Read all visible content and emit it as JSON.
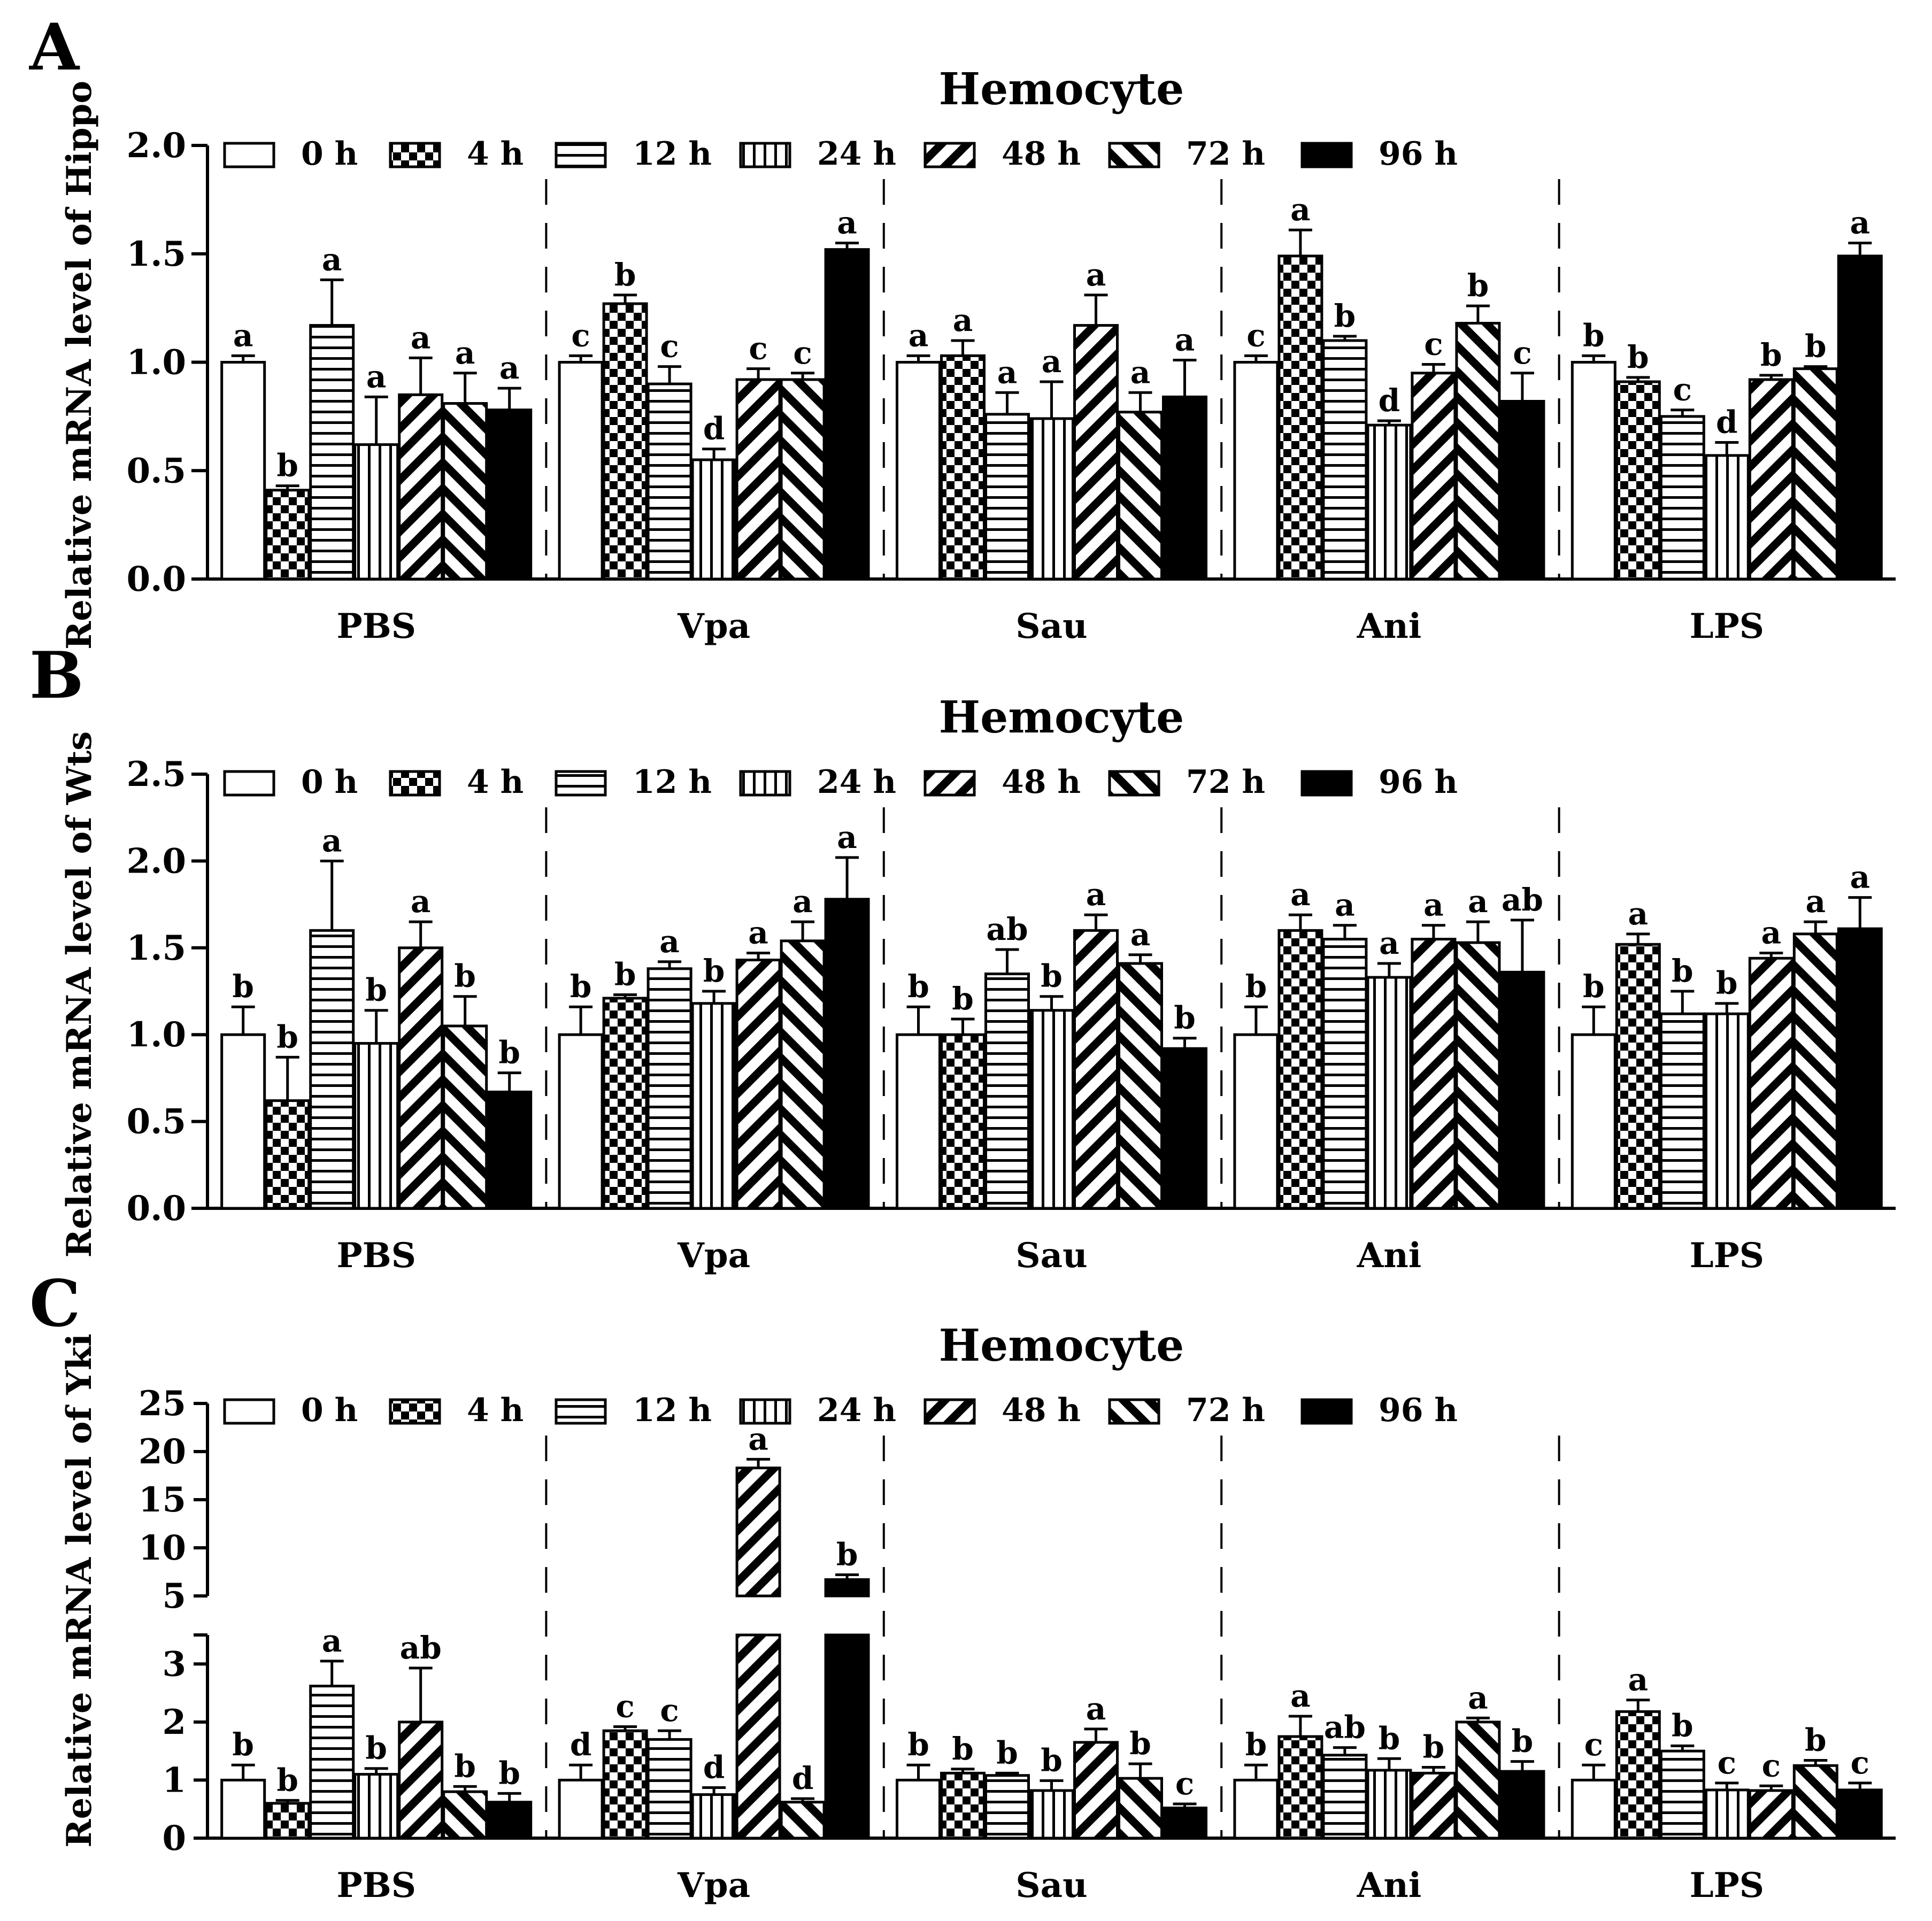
{
  "legend": [
    "0 h",
    "4 h",
    "12 h",
    "24 h",
    "48 h",
    "72 h",
    "96 h"
  ],
  "groups": [
    "PBS",
    "Vpa",
    "Sau",
    "Ani",
    "LPS"
  ],
  "chart_data": [
    {
      "panel": "A",
      "type": "bar",
      "title": "Hemocyte",
      "ylabel": "Relative mRNA level of Hippo",
      "ylim": [
        0,
        2.0
      ],
      "yticks": [
        "0.0",
        "0.5",
        "1.0",
        "1.5",
        "2.0"
      ],
      "series_names": [
        "0 h",
        "4 h",
        "12 h",
        "24 h",
        "48 h",
        "72 h",
        "96 h"
      ],
      "groups": [
        {
          "name": "PBS",
          "values": [
            1.0,
            0.41,
            1.17,
            0.62,
            0.85,
            0.81,
            0.78
          ],
          "errors": [
            0.03,
            0.02,
            0.21,
            0.22,
            0.17,
            0.14,
            0.1
          ],
          "letters": [
            "a",
            "b",
            "a",
            "a",
            "a",
            "a",
            "a"
          ]
        },
        {
          "name": "Vpa",
          "values": [
            1.0,
            1.27,
            0.9,
            0.55,
            0.92,
            0.92,
            1.52
          ],
          "errors": [
            0.03,
            0.04,
            0.08,
            0.05,
            0.05,
            0.03,
            0.03
          ],
          "letters": [
            "c",
            "b",
            "c",
            "d",
            "c",
            "c",
            "a"
          ]
        },
        {
          "name": "Sau",
          "values": [
            1.0,
            1.03,
            0.76,
            0.74,
            1.17,
            0.77,
            0.84
          ],
          "errors": [
            0.03,
            0.07,
            0.1,
            0.17,
            0.14,
            0.09,
            0.17
          ],
          "letters": [
            "a",
            "a",
            "a",
            "a",
            "a",
            "a",
            "a"
          ]
        },
        {
          "name": "Ani",
          "values": [
            1.0,
            1.49,
            1.1,
            0.71,
            0.95,
            1.18,
            0.82
          ],
          "errors": [
            0.03,
            0.12,
            0.02,
            0.02,
            0.04,
            0.08,
            0.13
          ],
          "letters": [
            "c",
            "a",
            "b",
            "d",
            "c",
            "b",
            "c"
          ]
        },
        {
          "name": "LPS",
          "values": [
            1.0,
            0.91,
            0.75,
            0.57,
            0.92,
            0.97,
            1.49
          ],
          "errors": [
            0.03,
            0.02,
            0.03,
            0.06,
            0.02,
            0.01,
            0.06
          ],
          "letters": [
            "b",
            "b",
            "c",
            "d",
            "b",
            "b",
            "a"
          ]
        }
      ]
    },
    {
      "panel": "B",
      "type": "bar",
      "title": "Hemocyte",
      "ylabel": "Relative mRNA level of Wts",
      "ylim": [
        0,
        2.5
      ],
      "yticks": [
        "0.0",
        "0.5",
        "1.0",
        "1.5",
        "2.0",
        "2.5"
      ],
      "series_names": [
        "0 h",
        "4 h",
        "12 h",
        "24 h",
        "48 h",
        "72 h",
        "96 h"
      ],
      "groups": [
        {
          "name": "PBS",
          "values": [
            1.0,
            0.62,
            1.6,
            0.95,
            1.5,
            1.05,
            0.67
          ],
          "errors": [
            0.16,
            0.25,
            0.4,
            0.19,
            0.15,
            0.17,
            0.11
          ],
          "letters": [
            "b",
            "b",
            "a",
            "b",
            "a",
            "b",
            "b"
          ]
        },
        {
          "name": "Vpa",
          "values": [
            1.0,
            1.21,
            1.38,
            1.18,
            1.43,
            1.54,
            1.78
          ],
          "errors": [
            0.16,
            0.02,
            0.04,
            0.07,
            0.04,
            0.11,
            0.24
          ],
          "letters": [
            "b",
            "b",
            "a",
            "b",
            "a",
            "a",
            "a"
          ]
        },
        {
          "name": "Sau",
          "values": [
            1.0,
            1.0,
            1.35,
            1.14,
            1.6,
            1.41,
            0.92
          ],
          "errors": [
            0.16,
            0.09,
            0.14,
            0.08,
            0.09,
            0.05,
            0.06
          ],
          "letters": [
            "b",
            "b",
            "ab",
            "b",
            "a",
            "a",
            "b"
          ]
        },
        {
          "name": "Ani",
          "values": [
            1.0,
            1.6,
            1.55,
            1.33,
            1.55,
            1.53,
            1.36
          ],
          "errors": [
            0.16,
            0.09,
            0.08,
            0.08,
            0.08,
            0.12,
            0.3
          ],
          "letters": [
            "b",
            "a",
            "a",
            "a",
            "a",
            "a",
            "ab"
          ]
        },
        {
          "name": "LPS",
          "values": [
            1.0,
            1.52,
            1.12,
            1.12,
            1.44,
            1.58,
            1.61
          ],
          "errors": [
            0.16,
            0.06,
            0.13,
            0.06,
            0.03,
            0.07,
            0.18
          ],
          "letters": [
            "b",
            "a",
            "b",
            "b",
            "a",
            "a",
            "a"
          ]
        }
      ]
    },
    {
      "panel": "C",
      "type": "bar",
      "title": "Hemocyte",
      "ylabel": "Relative mRNA level of Yki",
      "axis_break": {
        "lower_ylim": [
          0,
          3.5
        ],
        "upper_ylim": [
          3.5,
          25
        ]
      },
      "yticks_lower": [
        "0",
        "1",
        "2",
        "3"
      ],
      "yticks_upper": [
        "5",
        "10",
        "15",
        "20",
        "25"
      ],
      "series_names": [
        "0 h",
        "4 h",
        "12 h",
        "24 h",
        "48 h",
        "72 h",
        "96 h"
      ],
      "groups": [
        {
          "name": "PBS",
          "values": [
            1.0,
            0.6,
            2.62,
            1.1,
            2.0,
            0.8,
            0.62
          ],
          "errors": [
            0.26,
            0.05,
            0.43,
            0.1,
            0.93,
            0.09,
            0.15
          ],
          "letters": [
            "b",
            "b",
            "a",
            "b",
            "ab",
            "b",
            "b"
          ]
        },
        {
          "name": "Vpa",
          "values": [
            1.0,
            1.85,
            1.7,
            0.75,
            18.3,
            0.62,
            6.7
          ],
          "errors": [
            0.26,
            0.07,
            0.15,
            0.12,
            0.9,
            0.06,
            0.5
          ],
          "letters": [
            "d",
            "c",
            "c",
            "d",
            "a",
            "d",
            "b"
          ]
        },
        {
          "name": "Sau",
          "values": [
            1.0,
            1.12,
            1.08,
            0.82,
            1.65,
            1.03,
            0.52
          ],
          "errors": [
            0.26,
            0.07,
            0.04,
            0.17,
            0.23,
            0.25,
            0.07
          ],
          "letters": [
            "b",
            "b",
            "b",
            "b",
            "a",
            "b",
            "c"
          ]
        },
        {
          "name": "Ani",
          "values": [
            1.0,
            1.75,
            1.43,
            1.17,
            1.12,
            2.0,
            1.15
          ],
          "errors": [
            0.26,
            0.35,
            0.13,
            0.2,
            0.1,
            0.07,
            0.17
          ],
          "letters": [
            "b",
            "a",
            "ab",
            "b",
            "b",
            "a",
            "b"
          ]
        },
        {
          "name": "LPS",
          "values": [
            1.0,
            2.18,
            1.5,
            0.83,
            0.82,
            1.25,
            0.83
          ],
          "errors": [
            0.26,
            0.2,
            0.09,
            0.12,
            0.08,
            0.09,
            0.12
          ],
          "letters": [
            "c",
            "a",
            "b",
            "c",
            "c",
            "b",
            "c"
          ]
        }
      ]
    }
  ],
  "panel_letters": [
    "A",
    "B",
    "C"
  ]
}
